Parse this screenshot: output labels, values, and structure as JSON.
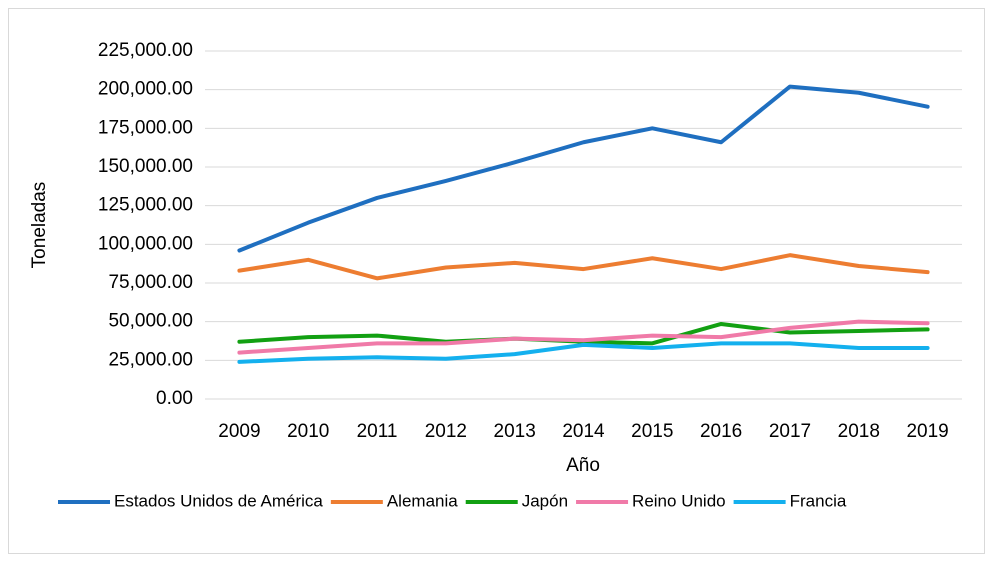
{
  "chart_data": {
    "type": "line",
    "x_label": "Año",
    "y_label": "Toneladas",
    "categories": [
      "2009",
      "2010",
      "2011",
      "2012",
      "2013",
      "2014",
      "2015",
      "2016",
      "2017",
      "2018",
      "2019"
    ],
    "series": [
      {
        "name": "Estados Unidos de América",
        "color": "#1f6fc0",
        "values": [
          96000,
          114000,
          130000,
          141000,
          153000,
          166000,
          175000,
          166000,
          202000,
          198000,
          189000
        ]
      },
      {
        "name": "Alemania",
        "color": "#ed7d31",
        "values": [
          83000,
          90000,
          78000,
          85000,
          88000,
          84000,
          91000,
          84000,
          93000,
          86000,
          82000
        ]
      },
      {
        "name": "Japón",
        "color": "#12a012",
        "values": [
          37000,
          40000,
          41000,
          37000,
          39000,
          37000,
          36000,
          48500,
          43000,
          44000,
          45000
        ]
      },
      {
        "name": "Reino Unido",
        "color": "#f07aa8",
        "values": [
          30000,
          33000,
          36000,
          36000,
          39000,
          38000,
          41000,
          40000,
          46000,
          50000,
          49000
        ]
      },
      {
        "name": "Francia",
        "color": "#14b0ee",
        "values": [
          24000,
          26000,
          27000,
          26000,
          29000,
          35000,
          33000,
          36000,
          36000,
          33000,
          33000
        ]
      }
    ],
    "ylim": [
      0,
      225000
    ],
    "yticks": [
      {
        "value": 0,
        "label": "0.00"
      },
      {
        "value": 25000,
        "label": "25,000.00"
      },
      {
        "value": 50000,
        "label": "50,000.00"
      },
      {
        "value": 75000,
        "label": "75,000.00"
      },
      {
        "value": 100000,
        "label": "100,000.00"
      },
      {
        "value": 125000,
        "label": "125,000.00"
      },
      {
        "value": 150000,
        "label": "150,000.00"
      },
      {
        "value": 175000,
        "label": "175,000.00"
      },
      {
        "value": 200000,
        "label": "200,000.00"
      },
      {
        "value": 225000,
        "label": "225,000.00"
      }
    ],
    "grid": true,
    "legend": "bottom"
  }
}
